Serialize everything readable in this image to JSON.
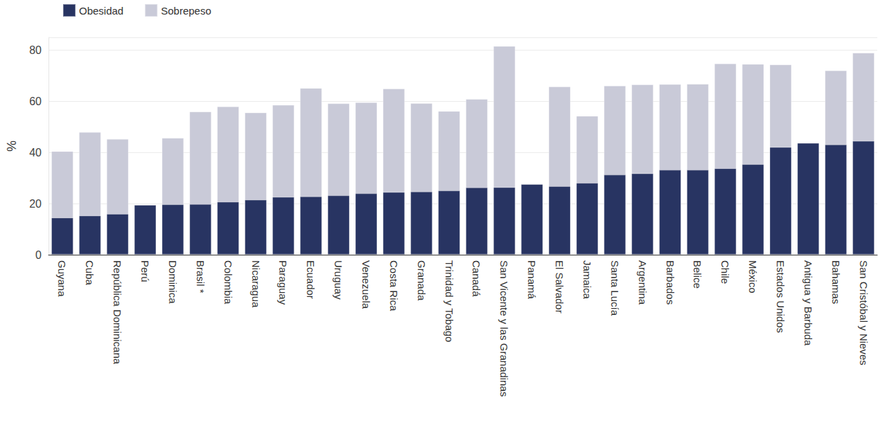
{
  "chart_data": {
    "type": "bar",
    "ylabel": "%",
    "categories": [
      "Guyana",
      "Cuba",
      "República Dominicana",
      "Perú",
      "Dominica",
      "Brasil *",
      "Colombia",
      "Nicaragua",
      "Paraguay",
      "Ecuador",
      "Uruguay",
      "Venezuela",
      "Costa Rica",
      "Granada",
      "Trinidad y Tobago",
      "Canadá",
      "San Vicente y las Granadinas",
      "Panamá",
      "El Salvador",
      "Jamaica",
      "Santa Lucía",
      "Argentina",
      "Barbados",
      "Belice",
      "Chile",
      "México",
      "Estados Unidos",
      "Antigua y Barbuda",
      "Bahamas",
      "San Cristóbal y Nieves"
    ],
    "series": [
      {
        "name": "Obesidad",
        "color": "#283462",
        "values": [
          14.5,
          15.3,
          16.0,
          19.5,
          19.7,
          19.8,
          20.7,
          21.5,
          22.6,
          22.8,
          23.2,
          24.0,
          24.5,
          24.7,
          25.1,
          26.3,
          26.4,
          27.6,
          26.8,
          28.1,
          31.3,
          31.8,
          33.2,
          33.2,
          33.8,
          35.4,
          42.1,
          43.7,
          43.1,
          44.5
        ]
      },
      {
        "name": "Sobrepeso",
        "color": "#c9cad8",
        "values": [
          40.5,
          48.0,
          45.3,
          null,
          45.7,
          56.0,
          58.0,
          55.6,
          58.6,
          65.2,
          59.2,
          59.6,
          65.0,
          59.3,
          56.2,
          60.9,
          81.6,
          null,
          65.8,
          54.3,
          66.1,
          66.6,
          66.7,
          66.8,
          74.8,
          74.6,
          74.4,
          null,
          72.1,
          79.0
        ]
      }
    ],
    "ylim": [
      0,
      85
    ],
    "yticks": [
      0,
      20,
      40,
      60,
      80
    ],
    "grid": true,
    "legend": "top-left",
    "stacked": false
  }
}
